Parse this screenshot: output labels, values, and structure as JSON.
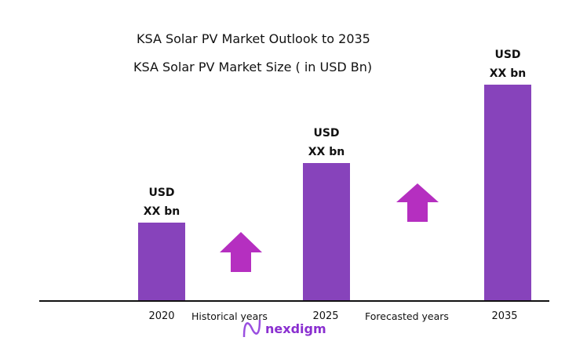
{
  "chart_data": {
    "type": "bar",
    "title": "KSA Solar PV Market Outlook to 2035",
    "subtitle": "KSA Solar PV Market Size  ( in USD Bn)",
    "categories": [
      "2020",
      "2025",
      "2035"
    ],
    "data_labels": [
      {
        "line1": "USD",
        "line2": "XX bn"
      },
      {
        "line1": "USD",
        "line2": "XX bn"
      },
      {
        "line1": "USD",
        "line2": "XX bn"
      }
    ],
    "annotations": [
      "Historical years",
      "Forecasted years"
    ],
    "bar_color": "#8743bb",
    "arrow_color": "#b52fc0",
    "grid": false
  },
  "logo": {
    "text": "nexdigm"
  }
}
